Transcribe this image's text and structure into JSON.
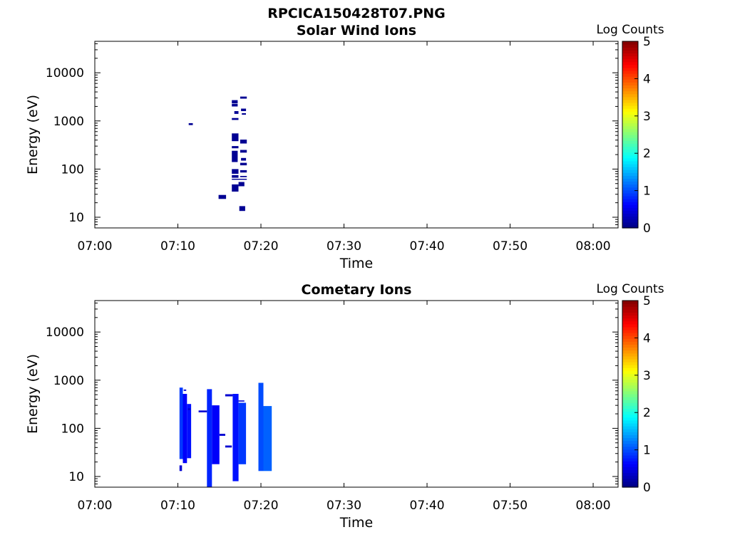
{
  "figure": {
    "title": "RPCICA150428T07.PNG"
  },
  "colormap": {
    "name": "jet",
    "stops": [
      "#00007f",
      "#0000ff",
      "#007fff",
      "#00ffff",
      "#7fff7f",
      "#ffff00",
      "#ff7f00",
      "#ff0000",
      "#7f0000"
    ]
  },
  "chart_data": [
    {
      "type": "heatmap",
      "title": "Solar Wind Ions",
      "xlabel": "Time",
      "ylabel": "Energy (eV)",
      "xlim": [
        "07:00",
        "08:03"
      ],
      "ylim": [
        6,
        45000
      ],
      "yscale": "log",
      "xticks": [
        "07:00",
        "07:10",
        "07:20",
        "07:30",
        "07:40",
        "07:50",
        "08:00"
      ],
      "yticks": [
        {
          "value": 10,
          "label": "10"
        },
        {
          "value": 100,
          "label": "100"
        },
        {
          "value": 1000,
          "label": "1000"
        },
        {
          "value": 10000,
          "label": "10000"
        }
      ],
      "colorbar": {
        "label": "Log Counts",
        "range": [
          0,
          5
        ],
        "ticks": [
          "0",
          "1",
          "2",
          "3",
          "4",
          "5"
        ]
      },
      "cells": [
        {
          "t0": "07:11.3",
          "t1": "07:11.8",
          "e0": 820,
          "e1": 900,
          "v": 0.1
        },
        {
          "t0": "07:14.9",
          "t1": "07:15.8",
          "e0": 24,
          "e1": 29,
          "v": 0.1
        },
        {
          "t0": "07:16.5",
          "t1": "07:17.2",
          "e0": 2300,
          "e1": 2700,
          "v": 0.1
        },
        {
          "t0": "07:16.5",
          "t1": "07:17.2",
          "e0": 2000,
          "e1": 2250,
          "v": 0.1
        },
        {
          "t0": "07:17.5",
          "t1": "07:18.3",
          "e0": 2900,
          "e1": 3200,
          "v": 0.1
        },
        {
          "t0": "07:16.8",
          "t1": "07:17.3",
          "e0": 1400,
          "e1": 1600,
          "v": 0.1
        },
        {
          "t0": "07:17.6",
          "t1": "07:18.2",
          "e0": 1600,
          "e1": 1800,
          "v": 0.1
        },
        {
          "t0": "07:17.7",
          "t1": "07:18.2",
          "e0": 1350,
          "e1": 1450,
          "v": 0.1
        },
        {
          "t0": "07:16.5",
          "t1": "07:17.3",
          "e0": 1050,
          "e1": 1150,
          "v": 0.1
        },
        {
          "t0": "07:16.5",
          "t1": "07:17.3",
          "e0": 380,
          "e1": 550,
          "v": 0.1
        },
        {
          "t0": "07:17.5",
          "t1": "07:18.3",
          "e0": 340,
          "e1": 410,
          "v": 0.1
        },
        {
          "t0": "07:16.5",
          "t1": "07:17.3",
          "e0": 270,
          "e1": 300,
          "v": 0.1
        },
        {
          "t0": "07:16.5",
          "t1": "07:17.2",
          "e0": 140,
          "e1": 240,
          "v": 0.1
        },
        {
          "t0": "07:17.5",
          "t1": "07:18.3",
          "e0": 220,
          "e1": 250,
          "v": 0.1
        },
        {
          "t0": "07:17.6",
          "t1": "07:18.2",
          "e0": 150,
          "e1": 170,
          "v": 0.1
        },
        {
          "t0": "07:17.5",
          "t1": "07:18.3",
          "e0": 120,
          "e1": 135,
          "v": 0.1
        },
        {
          "t0": "07:16.5",
          "t1": "07:17.3",
          "e0": 80,
          "e1": 100,
          "v": 0.1
        },
        {
          "t0": "07:17.5",
          "t1": "07:18.3",
          "e0": 85,
          "e1": 95,
          "v": 0.1
        },
        {
          "t0": "07:16.5",
          "t1": "07:17.3",
          "e0": 66,
          "e1": 75,
          "v": 0.1
        },
        {
          "t0": "07:17.5",
          "t1": "07:18.3",
          "e0": 68,
          "e1": 72,
          "v": 0.1
        },
        {
          "t0": "07:16.5",
          "t1": "07:18.3",
          "e0": 60,
          "e1": 63,
          "v": 0.1
        },
        {
          "t0": "07:17.3",
          "t1": "07:18.0",
          "e0": 44,
          "e1": 54,
          "v": 0.1
        },
        {
          "t0": "07:16.5",
          "t1": "07:17.3",
          "e0": 34,
          "e1": 48,
          "v": 0.1
        },
        {
          "t0": "07:17.4",
          "t1": "07:18.1",
          "e0": 13.5,
          "e1": 17,
          "v": 0.1
        }
      ]
    },
    {
      "type": "heatmap",
      "title": "Cometary Ions",
      "xlabel": "Time",
      "ylabel": "Energy (eV)",
      "xlim": [
        "07:00",
        "08:03"
      ],
      "ylim": [
        6,
        45000
      ],
      "yscale": "log",
      "xticks": [
        "07:00",
        "07:10",
        "07:20",
        "07:30",
        "07:40",
        "07:50",
        "08:00"
      ],
      "yticks": [
        {
          "value": 10,
          "label": "10"
        },
        {
          "value": 100,
          "label": "100"
        },
        {
          "value": 1000,
          "label": "1000"
        },
        {
          "value": 10000,
          "label": "10000"
        }
      ],
      "colorbar": {
        "label": "Log Counts",
        "range": [
          0,
          5
        ],
        "ticks": [
          "0",
          "1",
          "2",
          "3",
          "4",
          "5"
        ]
      },
      "cells": [
        {
          "t0": "07:10.2",
          "t1": "07:10.6",
          "e0": 23,
          "e1": 700,
          "v": 0.9
        },
        {
          "t0": "07:10.6",
          "t1": "07:11.1",
          "e0": 19,
          "e1": 520,
          "v": 0.6
        },
        {
          "t0": "07:11.1",
          "t1": "07:11.6",
          "e0": 24,
          "e1": 320,
          "v": 0.7
        },
        {
          "t0": "07:10.2",
          "t1": "07:10.5",
          "e0": 13,
          "e1": 17,
          "v": 0.4
        },
        {
          "t0": "07:10.7",
          "t1": "07:11.0",
          "e0": 600,
          "e1": 640,
          "v": 0.4
        },
        {
          "t0": "07:11.2",
          "t1": "07:11.5",
          "e0": 240,
          "e1": 260,
          "v": 0.4
        },
        {
          "t0": "07:12.5",
          "t1": "07:13.5",
          "e0": 215,
          "e1": 235,
          "v": 0.4
        },
        {
          "t0": "07:13.5",
          "t1": "07:14.1",
          "e0": 6,
          "e1": 650,
          "v": 0.8
        },
        {
          "t0": "07:14.1",
          "t1": "07:15.0",
          "e0": 18,
          "e1": 300,
          "v": 0.6
        },
        {
          "t0": "07:15.0",
          "t1": "07:15.7",
          "e0": 70,
          "e1": 77,
          "v": 0.4
        },
        {
          "t0": "07:15.7",
          "t1": "07:16.5",
          "e0": 40,
          "e1": 44,
          "v": 0.4
        },
        {
          "t0": "07:15.7",
          "t1": "07:16.6",
          "e0": 460,
          "e1": 510,
          "v": 0.4
        },
        {
          "t0": "07:16.6",
          "t1": "07:17.3",
          "e0": 8,
          "e1": 520,
          "v": 0.7
        },
        {
          "t0": "07:17.3",
          "t1": "07:18.2",
          "e0": 18,
          "e1": 340,
          "v": 0.9
        },
        {
          "t0": "07:17.3",
          "t1": "07:18.0",
          "e0": 360,
          "e1": 380,
          "v": 0.4
        },
        {
          "t0": "07:19.7",
          "t1": "07:20.3",
          "e0": 13,
          "e1": 880,
          "v": 1.0
        },
        {
          "t0": "07:20.3",
          "t1": "07:21.3",
          "e0": 13,
          "e1": 290,
          "v": 1.1
        }
      ]
    }
  ]
}
